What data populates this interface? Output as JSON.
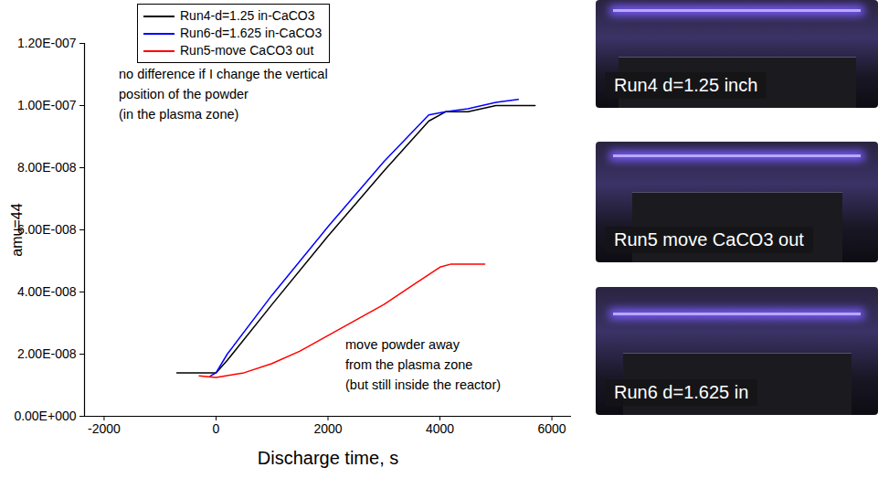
{
  "chart_data": {
    "type": "line",
    "x_label": "Discharge time, s",
    "y_label": "amu=44",
    "xlim": [
      -2350,
      6350
    ],
    "xticks": [
      -2000,
      0,
      2000,
      4000,
      6000
    ],
    "ylim": [
      0,
      1.2e-07
    ],
    "yticks": [
      {
        "value": 0,
        "label": "0.00E+000"
      },
      {
        "value": 2e-08,
        "label": "2.00E-008"
      },
      {
        "value": 4e-08,
        "label": "4.00E-008"
      },
      {
        "value": 6e-08,
        "label": "6.00E-008"
      },
      {
        "value": 8e-08,
        "label": "8.00E-008"
      },
      {
        "value": 1e-07,
        "label": "1.00E-007"
      },
      {
        "value": 1.2e-07,
        "label": "1.20E-007"
      }
    ],
    "legend": "top-left",
    "series": [
      {
        "name": "Run4-d=1.25 in-CaCO3",
        "color": "#000000",
        "x": [
          -700,
          0,
          200,
          1000,
          2000,
          3000,
          3800,
          4100,
          4500,
          5000,
          5700
        ],
        "values": [
          1.4e-08,
          1.4e-08,
          1.8e-08,
          3.6e-08,
          5.8e-08,
          7.9e-08,
          9.5e-08,
          9.8e-08,
          9.8e-08,
          1e-07,
          1e-07
        ]
      },
      {
        "name": "Run6-d=1.625 in-CaCO3",
        "color": "#0000ff",
        "x": [
          -100,
          0,
          200,
          1000,
          2000,
          3000,
          3800,
          4100,
          4500,
          5000,
          5400
        ],
        "values": [
          1.3e-08,
          1.4e-08,
          2e-08,
          3.9e-08,
          6.1e-08,
          8.2e-08,
          9.7e-08,
          9.8e-08,
          9.9e-08,
          1.01e-07,
          1.02e-07
        ]
      },
      {
        "name": "Run5-move CaCO3 out",
        "color": "#ff0000",
        "x": [
          -300,
          0,
          500,
          1000,
          1500,
          2000,
          2500,
          3000,
          3500,
          4000,
          4200,
          4800
        ],
        "values": [
          1.3e-08,
          1.25e-08,
          1.4e-08,
          1.7e-08,
          2.1e-08,
          2.6e-08,
          3.1e-08,
          3.6e-08,
          4.2e-08,
          4.8e-08,
          4.9e-08,
          4.9e-08
        ]
      }
    ],
    "annotations": [
      {
        "lines": [
          "no difference if I change the vertical",
          "position of the powder",
          "(in the plasma zone)"
        ]
      },
      {
        "lines": [
          "move powder away",
          "from the plasma zone",
          "(but still inside the reactor)"
        ]
      }
    ]
  },
  "photos": [
    {
      "caption": "Run4 d=1.25 inch"
    },
    {
      "caption": "Run5 move CaCO3 out"
    },
    {
      "caption": "Run6 d=1.625 in"
    }
  ]
}
